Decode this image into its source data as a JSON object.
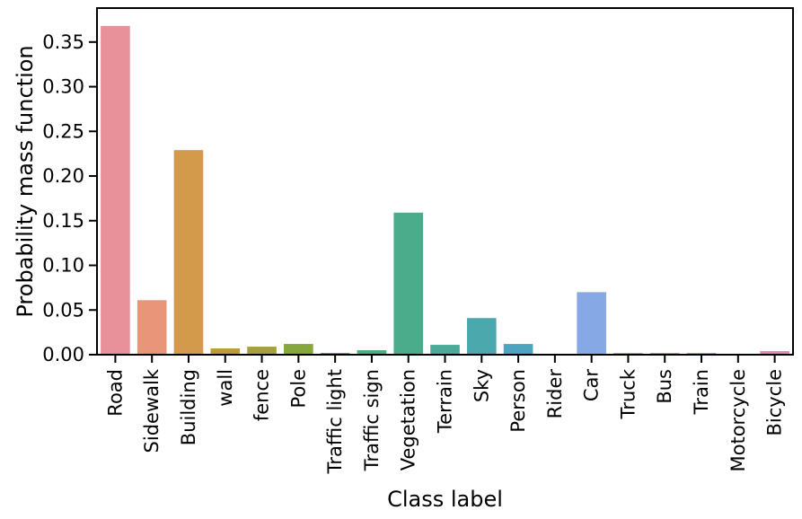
{
  "chart_data": {
    "type": "bar",
    "title": "",
    "xlabel": "Class label",
    "ylabel": "Probability mass function",
    "ylim": [
      0,
      0.388
    ],
    "yticks": [
      "0.00",
      "0.05",
      "0.10",
      "0.15",
      "0.20",
      "0.25",
      "0.30",
      "0.35"
    ],
    "grid": false,
    "categories": [
      "Road",
      "Sidewalk",
      "Building",
      "wall",
      "fence",
      "Pole",
      "Traffic light",
      "Traffic sign",
      "Vegetation",
      "Terrain",
      "Sky",
      "Person",
      "Rider",
      "Car",
      "Truck",
      "Bus",
      "Train",
      "Motorcycle",
      "Bicycle"
    ],
    "values": [
      0.368,
      0.061,
      0.229,
      0.007,
      0.009,
      0.012,
      0.002,
      0.005,
      0.159,
      0.011,
      0.041,
      0.012,
      0.0005,
      0.07,
      0.002,
      0.002,
      0.002,
      0.0005,
      0.004
    ],
    "colors": [
      "#e8919b",
      "#e8957a",
      "#d39a4c",
      "#bb9c3b",
      "#a5a13a",
      "#86a73c",
      "#4cad64",
      "#4bad80",
      "#4bac8c",
      "#4bab99",
      "#4ba8ad",
      "#4ba5c1",
      "#5ea3d9",
      "#86a9e5",
      "#a4a1e6",
      "#c190e5",
      "#dc85d6",
      "#e782c2",
      "#e587ae"
    ]
  }
}
